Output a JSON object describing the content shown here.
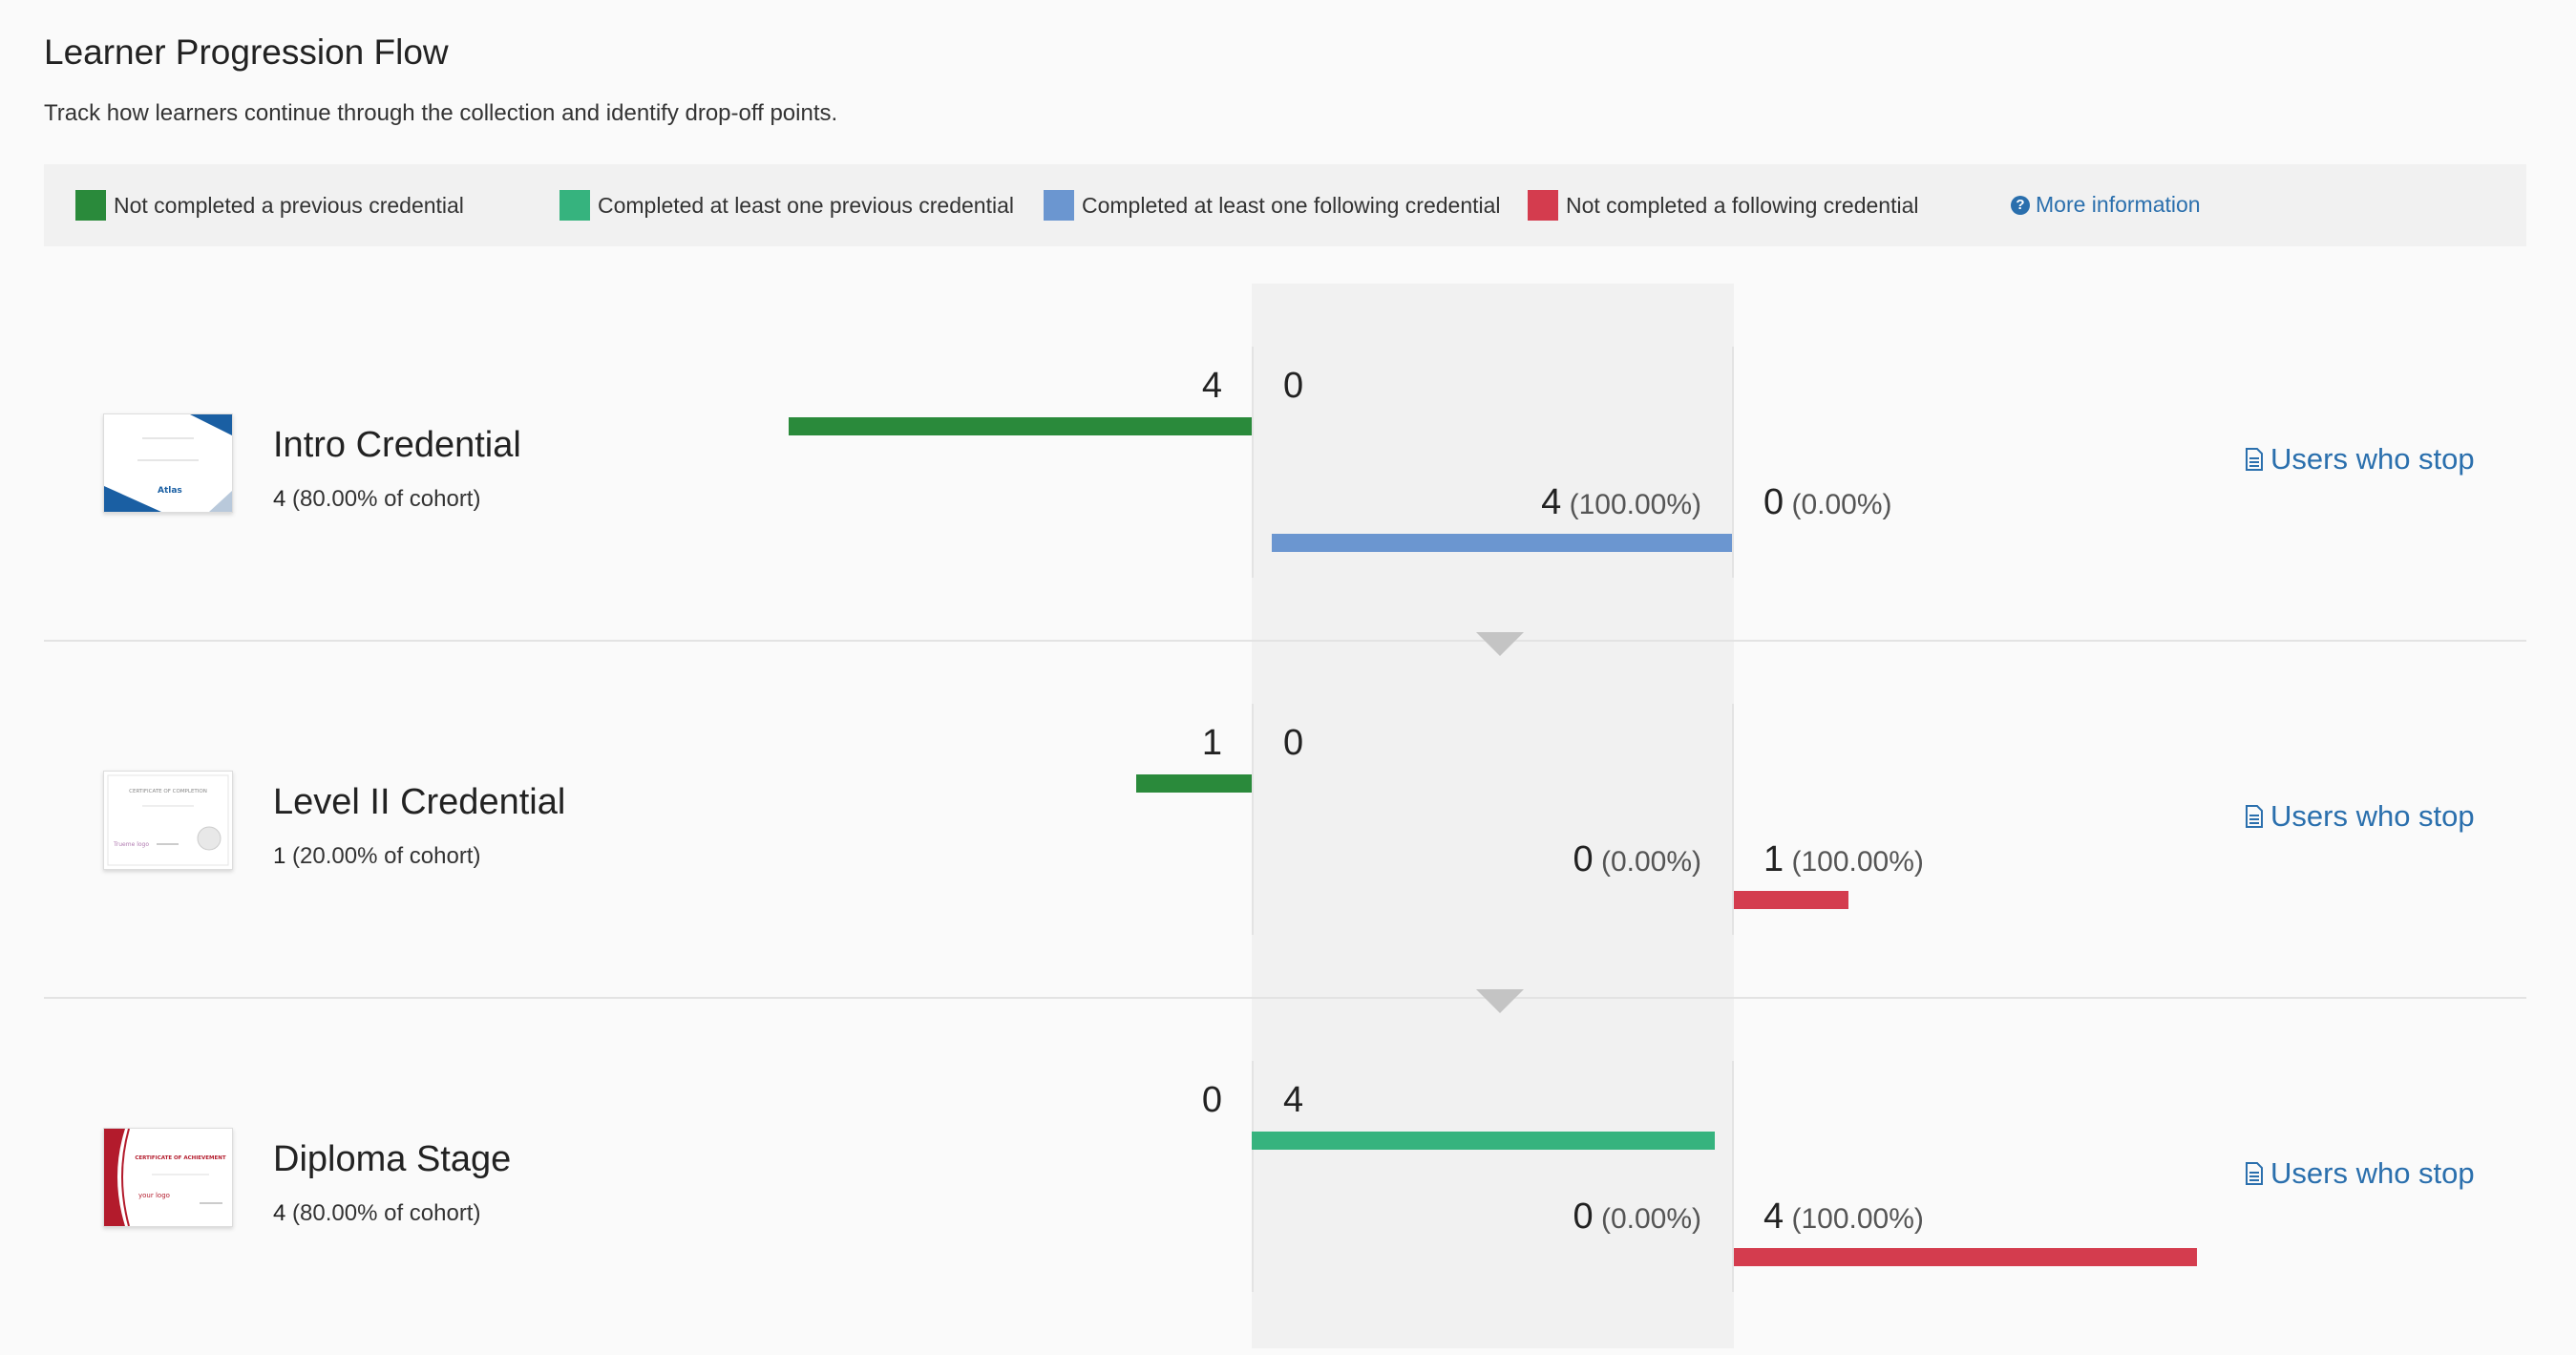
{
  "header": {
    "title": "Learner Progression Flow",
    "subtitle": "Track how learners continue through the collection and identify drop-off points."
  },
  "legend": {
    "items": [
      {
        "label": "Not completed a previous credential",
        "color": "#2a8a3b"
      },
      {
        "label": "Completed at least one previous credential",
        "color": "#36b37e"
      },
      {
        "label": "Completed at least one following credential",
        "color": "#6b96d0"
      },
      {
        "label": "Not completed a following credential",
        "color": "#d43c4e"
      }
    ],
    "more_info": "More information"
  },
  "colors": {
    "not_completed_previous": "#2a8a3b",
    "completed_previous": "#36b37e",
    "completed_following": "#6b96d0",
    "not_completed_following": "#d43c4e",
    "link": "#2a6fad"
  },
  "credentials": [
    {
      "name": "Intro Credential",
      "count": "4",
      "cohort": "(80.00% of cohort)",
      "not_completed_previous": "4",
      "completed_previous": "0",
      "completed_following": "4",
      "completed_following_pct": "(100.00%)",
      "not_completed_following": "0",
      "not_completed_following_pct": "(0.00%)",
      "link": "Users who stop"
    },
    {
      "name": "Level II Credential",
      "count": "1",
      "cohort": "(20.00% of cohort)",
      "not_completed_previous": "1",
      "completed_previous": "0",
      "completed_following": "0",
      "completed_following_pct": "(0.00%)",
      "not_completed_following": "1",
      "not_completed_following_pct": "(100.00%)",
      "link": "Users who stop"
    },
    {
      "name": "Diploma Stage",
      "count": "4",
      "cohort": "(80.00% of cohort)",
      "not_completed_previous": "0",
      "completed_previous": "4",
      "completed_following": "0",
      "completed_following_pct": "(0.00%)",
      "not_completed_following": "4",
      "not_completed_following_pct": "(100.00%)",
      "link": "Users who stop"
    }
  ],
  "thumbnails": {
    "t1_brand": "Atlas",
    "t2_title": "CERTIFICATE OF COMPLETION",
    "t2_logo": "Trueme logo",
    "t3_title": "CERTIFICATE OF ACHIEVEMENT",
    "t3_logo": "your logo"
  }
}
